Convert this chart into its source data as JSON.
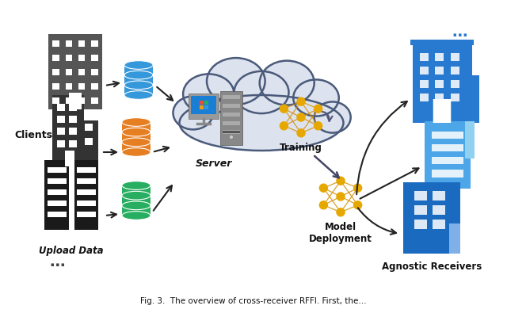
{
  "caption": "Fig. 3.  The overview of cross-receiver RFFI. First, the...",
  "clients_label": "Clients",
  "upload_label": "Upload Data",
  "server_label": "Server",
  "training_label": "Training",
  "model_deploy_label": "Model\nDeployment",
  "receivers_label": "Agnostic Receivers",
  "dots": "⋯",
  "bg_color": "#ffffff",
  "cloud_color": "#dde3ee",
  "cloud_edge_color": "#4a5a7a",
  "building_dark1": "#555555",
  "building_dark2": "#333333",
  "building_dark3": "#1a1a1a",
  "building_blue1": "#2879d0",
  "building_blue2": "#4da6e8",
  "building_blue3": "#1a6abf",
  "arrow_color": "#222222",
  "db_blue": "#3498db",
  "db_orange": "#e67e22",
  "db_green": "#27ae60",
  "nn_node_color": "#e6a800",
  "nn_edge_color": "#d4900a",
  "text_color": "#111111",
  "screen_color": "#1a7fd4",
  "tower_color": "#7a7a7a",
  "monitor_color": "#8a8a8a",
  "monitor_stand": "#9a9a9a"
}
